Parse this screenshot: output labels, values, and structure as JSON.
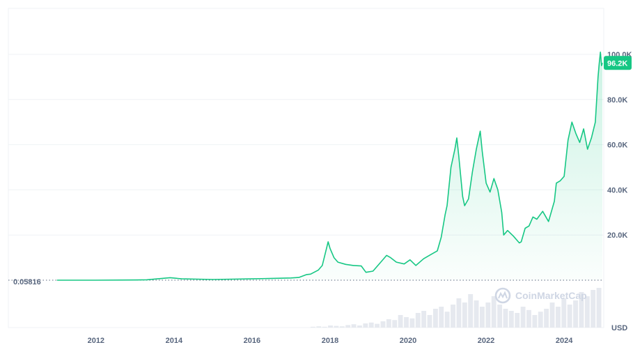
{
  "chart_data": {
    "type": "area",
    "title": "",
    "xlabel": "",
    "ylabel": "",
    "unit_label": "USD",
    "baseline_label": "0.05816",
    "current_price_label": "96.2K",
    "watermark": "CoinMarketCap",
    "y_ticks": [
      "20.0K",
      "40.0K",
      "60.0K",
      "80.0K",
      "100.0K"
    ],
    "y_tick_values": [
      20000,
      40000,
      60000,
      80000,
      100000
    ],
    "x_ticks": [
      "2012",
      "2014",
      "2016",
      "2018",
      "2020",
      "2022",
      "2024"
    ],
    "x_tick_values": [
      2012,
      2014,
      2016,
      2018,
      2020,
      2022,
      2024
    ],
    "xlim": [
      2010.7,
      2024.98
    ],
    "ylim": [
      0,
      120000
    ],
    "grid": true,
    "colors": {
      "line": "#16c784",
      "fill_top": "#16c784",
      "grid": "#eff2f5",
      "badge": "#16c784",
      "volume": "#e6e9ef",
      "baseline": "#58667e",
      "text": "#58667e"
    },
    "series": [
      {
        "x": [
          2011.0,
          2012.0,
          2013.0,
          2013.3,
          2013.9,
          2014.2,
          2015.0,
          2016.0,
          2017.0,
          2017.2,
          2017.4,
          2017.5,
          2017.7,
          2017.8,
          2017.95,
          2018.0,
          2018.1,
          2018.2,
          2018.4,
          2018.6,
          2018.8,
          2018.92,
          2019.1,
          2019.3,
          2019.45,
          2019.55,
          2019.7,
          2019.9,
          2020.05,
          2020.2,
          2020.4,
          2020.6,
          2020.75,
          2020.85,
          2020.95,
          2021.0,
          2021.1,
          2021.2,
          2021.25,
          2021.3,
          2021.4,
          2021.45,
          2021.55,
          2021.65,
          2021.75,
          2021.85,
          2021.9,
          2022.0,
          2022.1,
          2022.2,
          2022.3,
          2022.4,
          2022.45,
          2022.55,
          2022.7,
          2022.85,
          2022.9,
          2023.0,
          2023.1,
          2023.2,
          2023.3,
          2023.45,
          2023.6,
          2023.75,
          2023.8,
          2023.9,
          2024.0,
          2024.1,
          2024.2,
          2024.3,
          2024.4,
          2024.5,
          2024.6,
          2024.7,
          2024.8,
          2024.87,
          2024.9,
          2024.93,
          2024.96,
          2024.98
        ],
        "values": [
          0.06,
          5,
          100,
          200,
          1100,
          600,
          300,
          600,
          1000,
          1200,
          2500,
          2700,
          4500,
          6500,
          17000,
          14000,
          10000,
          8000,
          7000,
          6500,
          6300,
          3500,
          4000,
          8000,
          11000,
          10000,
          8000,
          7200,
          9000,
          6500,
          9500,
          11500,
          13000,
          19000,
          29000,
          33000,
          50000,
          58000,
          63000,
          55000,
          37000,
          33000,
          36000,
          48000,
          58000,
          66000,
          57000,
          43000,
          39000,
          45000,
          40000,
          30000,
          20000,
          22000,
          19500,
          16500,
          17000,
          23000,
          24000,
          28000,
          27000,
          30500,
          26000,
          35000,
          43000,
          44000,
          46000,
          62000,
          70000,
          65000,
          61000,
          67000,
          58000,
          63000,
          70000,
          90000,
          96000,
          101000,
          95000,
          96200
        ]
      }
    ],
    "volume_bars": [
      0.02,
      0.03,
      0.02,
      0.05,
      0.04,
      0.03,
      0.06,
      0.08,
      0.05,
      0.1,
      0.12,
      0.09,
      0.15,
      0.2,
      0.18,
      0.3,
      0.25,
      0.22,
      0.35,
      0.4,
      0.3,
      0.45,
      0.5,
      0.38,
      0.55,
      0.7,
      0.6,
      0.8,
      0.65,
      0.5,
      0.6,
      0.75,
      0.55,
      0.45,
      0.4,
      0.35,
      0.5,
      0.42,
      0.3,
      0.38,
      0.45,
      0.6,
      0.5,
      0.7,
      0.55,
      0.65,
      0.85,
      0.75,
      0.9,
      0.95
    ]
  }
}
